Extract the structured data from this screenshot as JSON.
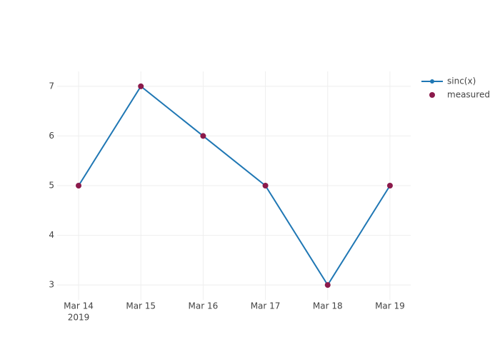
{
  "chart_data": {
    "type": "line",
    "x": [
      "2019-03-14",
      "2019-03-15",
      "2019-03-16",
      "2019-03-17",
      "2019-03-18",
      "2019-03-19"
    ],
    "series": [
      {
        "name": "sinc(x)",
        "mode": "lines+markers",
        "color": "#1f77b4",
        "values": [
          5,
          7,
          6,
          5,
          3,
          5
        ]
      },
      {
        "name": "measured",
        "mode": "markers",
        "color": "#8b1a4b",
        "values": [
          5,
          7,
          6,
          5,
          3,
          5
        ]
      }
    ],
    "xlim": [
      "2019-03-13T15:44",
      "2019-03-19T08:00"
    ],
    "xticks": [
      {
        "value": "2019-03-14",
        "label": "Mar 14"
      },
      {
        "value": "2019-03-15",
        "label": "Mar 15"
      },
      {
        "value": "2019-03-16",
        "label": "Mar 16"
      },
      {
        "value": "2019-03-17",
        "label": "Mar 17"
      },
      {
        "value": "2019-03-18",
        "label": "Mar 18"
      },
      {
        "value": "2019-03-19",
        "label": "Mar 19"
      }
    ],
    "x_year_label": "2019",
    "ylim": [
      2.7,
      7.3
    ],
    "yticks": [
      3,
      4,
      5,
      6,
      7
    ],
    "grid": true,
    "legend": "top-right"
  }
}
